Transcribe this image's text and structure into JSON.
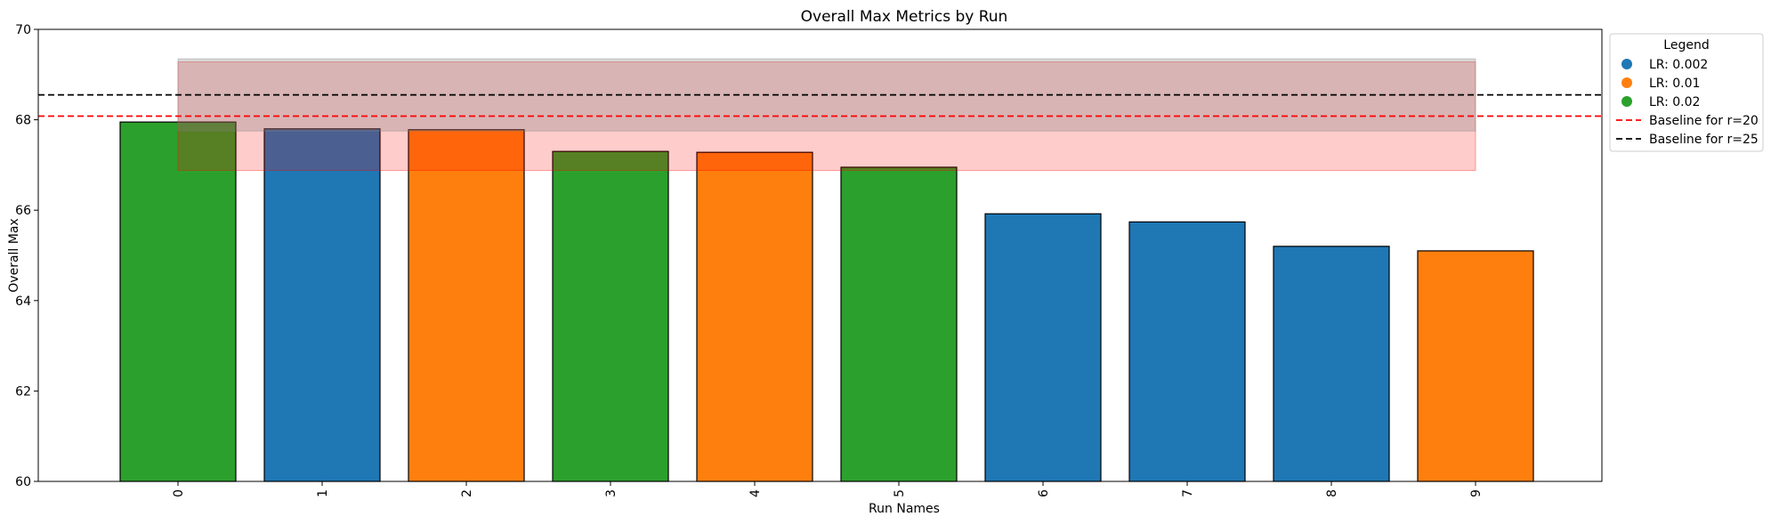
{
  "chart_data": {
    "type": "bar",
    "title": "Overall Max Metrics by Run",
    "xlabel": "Run Names",
    "ylabel": "Overall Max",
    "ylim": [
      60,
      70
    ],
    "yticks": [
      60,
      62,
      64,
      66,
      68,
      70
    ],
    "categories": [
      "0",
      "1",
      "2",
      "3",
      "4",
      "5",
      "6",
      "7",
      "8",
      "9"
    ],
    "values": [
      67.95,
      67.8,
      67.78,
      67.3,
      67.28,
      66.95,
      65.92,
      65.74,
      65.2,
      65.1
    ],
    "bar_groups": [
      "LR: 0.02",
      "LR: 0.002",
      "LR: 0.01",
      "LR: 0.02",
      "LR: 0.01",
      "LR: 0.02",
      "LR: 0.002",
      "LR: 0.002",
      "LR: 0.002",
      "LR: 0.01"
    ],
    "group_colors": {
      "LR: 0.002": "#1f77b4",
      "LR: 0.01": "#ff7f0e",
      "LR: 0.02": "#2ca02c"
    },
    "baselines": [
      {
        "name": "Baseline for r=20",
        "value": 68.08,
        "band": [
          66.88,
          69.28
        ],
        "color": "#ff0000",
        "band_color": "#ff0000"
      },
      {
        "name": "Baseline for r=25",
        "value": 68.55,
        "band": [
          67.75,
          69.35
        ],
        "color": "#000000",
        "band_color": "#7f7f7f"
      }
    ],
    "band_x_range": [
      "0",
      "9"
    ],
    "legend": {
      "title": "Legend",
      "placement": "outside-top-right",
      "entries": [
        "LR: 0.002",
        "LR: 0.01",
        "LR: 0.02",
        "Baseline for r=20",
        "Baseline for r=25"
      ]
    },
    "grid": false
  }
}
